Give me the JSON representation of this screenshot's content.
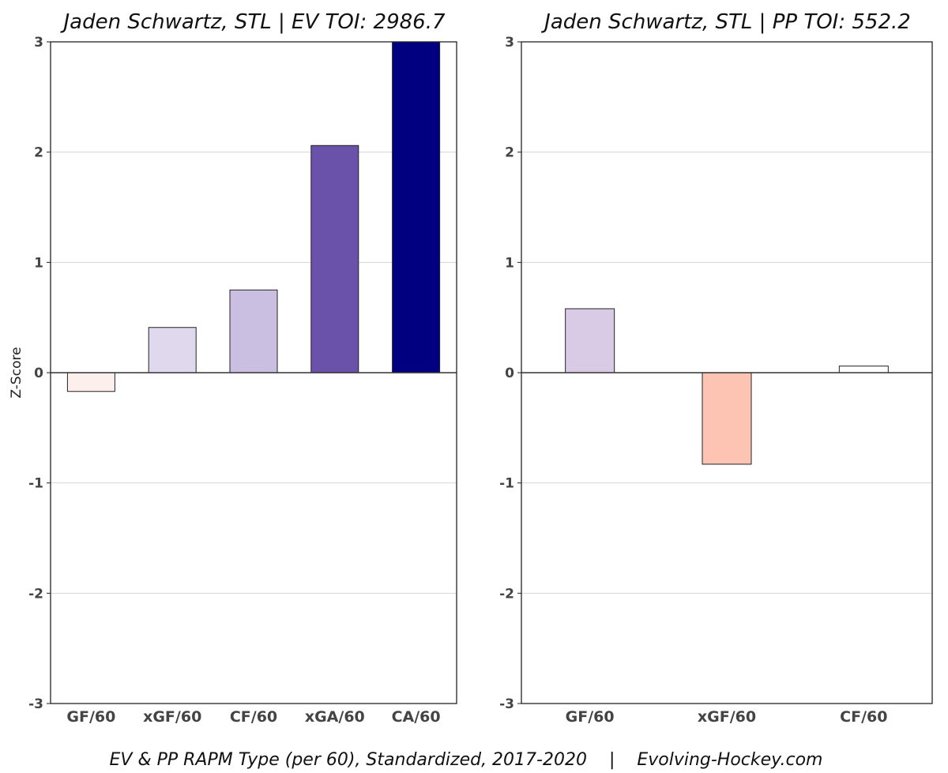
{
  "footer": "EV & PP RAPM Type (per 60), Standardized, 2017-2020    |    Evolving-Hockey.com",
  "chart_data": [
    {
      "type": "bar",
      "title": "Jaden Schwartz, STL  |  EV TOI: 2986.7",
      "xlabel": "",
      "ylabel": "Z-Score",
      "ylim": [
        -3,
        3
      ],
      "yticks": [
        3,
        2,
        1,
        0,
        -1,
        -2,
        -3
      ],
      "grid": true,
      "categories": [
        "GF/60",
        "xGF/60",
        "CF/60",
        "xGA/60",
        "CA/60"
      ],
      "values": [
        -0.17,
        0.41,
        0.75,
        2.06,
        3.0
      ],
      "colors": [
        "#fdf0ec",
        "#e0d9ee",
        "#cbbfe1",
        "#6a51a9",
        "#000080"
      ]
    },
    {
      "type": "bar",
      "title": "Jaden Schwartz, STL  |  PP TOI: 552.2",
      "xlabel": "",
      "ylabel": "",
      "ylim": [
        -3,
        3
      ],
      "yticks": [
        3,
        2,
        1,
        0,
        -1,
        -2,
        -3
      ],
      "grid": true,
      "categories": [
        "GF/60",
        "xGF/60",
        "CF/60"
      ],
      "values": [
        0.58,
        -0.83,
        0.06
      ],
      "colors": [
        "#d9cbe6",
        "#fdc3b3",
        "#ffffff"
      ]
    }
  ]
}
